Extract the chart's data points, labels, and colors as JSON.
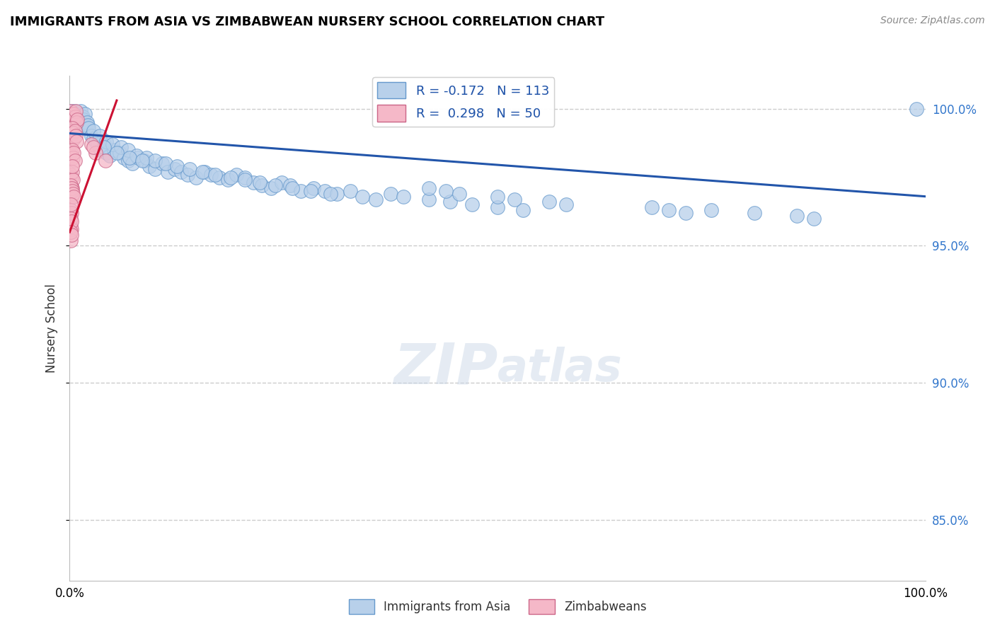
{
  "title": "IMMIGRANTS FROM ASIA VS ZIMBABWEAN NURSERY SCHOOL CORRELATION CHART",
  "source": "Source: ZipAtlas.com",
  "ylabel": "Nursery School",
  "ytick_values": [
    0.85,
    0.9,
    0.95,
    1.0
  ],
  "ytick_labels": [
    "85.0%",
    "90.0%",
    "95.0%",
    "100.0%"
  ],
  "legend_r_blue": "-0.172",
  "legend_n_blue": "113",
  "legend_r_pink": "0.298",
  "legend_n_pink": "50",
  "blue_color": "#b8d0ea",
  "pink_color": "#f5b8c8",
  "blue_line_color": "#2255aa",
  "pink_line_color": "#cc1133",
  "watermark_zip": "ZIP",
  "watermark_atlas": "atlas",
  "blue_scatter_x": [
    0.002,
    0.003,
    0.004,
    0.005,
    0.006,
    0.007,
    0.008,
    0.009,
    0.01,
    0.011,
    0.012,
    0.013,
    0.014,
    0.015,
    0.016,
    0.017,
    0.018,
    0.019,
    0.02,
    0.021,
    0.022,
    0.025,
    0.028,
    0.03,
    0.033,
    0.036,
    0.04,
    0.043,
    0.047,
    0.052,
    0.058,
    0.063,
    0.068,
    0.073,
    0.08,
    0.087,
    0.093,
    0.1,
    0.108,
    0.115,
    0.123,
    0.13,
    0.138,
    0.148,
    0.158,
    0.165,
    0.175,
    0.185,
    0.195,
    0.205,
    0.215,
    0.225,
    0.235,
    0.248,
    0.258,
    0.27,
    0.285,
    0.298,
    0.312,
    0.328,
    0.342,
    0.358,
    0.375,
    0.028,
    0.035,
    0.043,
    0.05,
    0.06,
    0.068,
    0.078,
    0.09,
    0.1,
    0.112,
    0.125,
    0.14,
    0.155,
    0.17,
    0.188,
    0.205,
    0.222,
    0.24,
    0.26,
    0.282,
    0.305,
    0.04,
    0.055,
    0.07,
    0.085,
    0.39,
    0.42,
    0.445,
    0.47,
    0.5,
    0.53,
    0.42,
    0.44,
    0.455,
    0.5,
    0.52,
    0.56,
    0.58,
    0.68,
    0.7,
    0.72,
    0.75,
    0.8,
    0.85,
    0.87,
    0.99
  ],
  "blue_scatter_y": [
    0.999,
    0.997,
    0.998,
    0.996,
    0.999,
    0.997,
    0.998,
    0.995,
    0.997,
    0.998,
    0.996,
    0.999,
    0.995,
    0.997,
    0.996,
    0.994,
    0.998,
    0.993,
    0.995,
    0.994,
    0.993,
    0.99,
    0.989,
    0.988,
    0.987,
    0.985,
    0.987,
    0.984,
    0.983,
    0.985,
    0.984,
    0.982,
    0.981,
    0.98,
    0.982,
    0.981,
    0.979,
    0.978,
    0.98,
    0.977,
    0.978,
    0.977,
    0.976,
    0.975,
    0.977,
    0.976,
    0.975,
    0.974,
    0.976,
    0.975,
    0.973,
    0.972,
    0.971,
    0.973,
    0.972,
    0.97,
    0.971,
    0.97,
    0.969,
    0.97,
    0.968,
    0.967,
    0.969,
    0.992,
    0.99,
    0.988,
    0.987,
    0.986,
    0.985,
    0.983,
    0.982,
    0.981,
    0.98,
    0.979,
    0.978,
    0.977,
    0.976,
    0.975,
    0.974,
    0.973,
    0.972,
    0.971,
    0.97,
    0.969,
    0.986,
    0.984,
    0.982,
    0.981,
    0.968,
    0.967,
    0.966,
    0.965,
    0.964,
    0.963,
    0.971,
    0.97,
    0.969,
    0.968,
    0.967,
    0.966,
    0.965,
    0.964,
    0.963,
    0.962,
    0.963,
    0.962,
    0.961,
    0.96,
    1.0
  ],
  "pink_scatter_x": [
    0.001,
    0.002,
    0.003,
    0.004,
    0.005,
    0.006,
    0.007,
    0.008,
    0.009,
    0.001,
    0.002,
    0.003,
    0.004,
    0.005,
    0.006,
    0.007,
    0.008,
    0.001,
    0.002,
    0.003,
    0.004,
    0.005,
    0.006,
    0.001,
    0.002,
    0.003,
    0.004,
    0.001,
    0.002,
    0.003,
    0.001,
    0.002,
    0.001,
    0.002,
    0.001,
    0.025,
    0.03,
    0.003,
    0.028,
    0.042,
    0.001,
    0.002,
    0.003,
    0.004,
    0.005,
    0.001,
    0.001,
    0.002,
    0.001,
    0.002
  ],
  "pink_scatter_y": [
    0.999,
    0.997,
    0.998,
    0.996,
    0.998,
    0.997,
    0.999,
    0.995,
    0.996,
    0.992,
    0.99,
    0.993,
    0.991,
    0.989,
    0.992,
    0.99,
    0.988,
    0.984,
    0.983,
    0.985,
    0.982,
    0.984,
    0.981,
    0.976,
    0.975,
    0.977,
    0.974,
    0.97,
    0.968,
    0.971,
    0.963,
    0.962,
    0.957,
    0.956,
    0.952,
    0.987,
    0.984,
    0.979,
    0.986,
    0.981,
    0.972,
    0.971,
    0.97,
    0.969,
    0.968,
    0.965,
    0.96,
    0.959,
    0.955,
    0.954
  ],
  "blue_trendline_x": [
    0.0,
    1.0
  ],
  "blue_trendline_y": [
    0.991,
    0.968
  ],
  "pink_trendline_x": [
    0.0,
    0.055
  ],
  "pink_trendline_y": [
    0.955,
    1.003
  ],
  "xlim": [
    0.0,
    1.0
  ],
  "ylim": [
    0.828,
    1.012
  ]
}
